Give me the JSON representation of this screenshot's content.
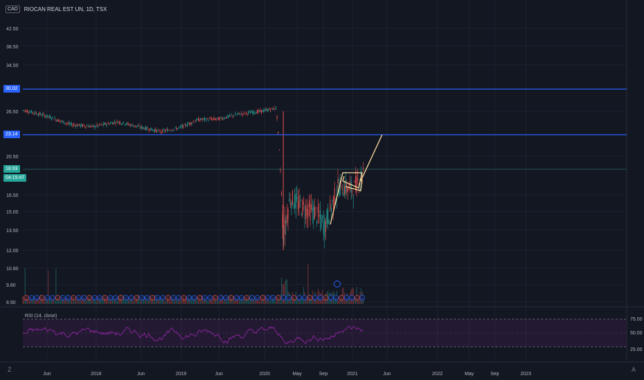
{
  "symbol": {
    "currency": "CAD",
    "title": "RIOCAN REAL EST UN, 1D, TSX"
  },
  "price_scale": [
    "42.50",
    "38.50",
    "34.50",
    "30.50",
    "26.50",
    "23.14",
    "20.50",
    "18.93",
    "16.50",
    "15.00",
    "13.50",
    "12.00",
    "10.80",
    "9.80",
    "8.90"
  ],
  "tags": {
    "level_high": {
      "value": "30.02",
      "color": "#2962ff"
    },
    "level_low": {
      "value": "23.14",
      "color": "#2962ff"
    },
    "last_price": {
      "value": "18.93",
      "color": "#26a69a"
    },
    "countdown": {
      "value": "04:15:47",
      "color": "#26a69a"
    }
  },
  "rsi": {
    "label": "RSI (14, close)",
    "levels": [
      "75.00",
      "50.00",
      "25.00"
    ],
    "color": "#9c27b0"
  },
  "time_axis": [
    "Jun",
    "2018",
    "Jun",
    "2019",
    "Jun",
    "2020",
    "May",
    "Sep",
    "2021",
    "Jun",
    "2022",
    "May",
    "Sep",
    "2023"
  ],
  "icons": {
    "bottom_left": "tradingview-z-icon",
    "bottom_right": "auto-scale-icon"
  },
  "chart_data": {
    "type": "line",
    "title": "RIOCAN REAL EST UN, 1D, TSX",
    "x": [
      "2017-03",
      "2017-06",
      "2017-09",
      "2017-12",
      "2018-03",
      "2018-06",
      "2018-09",
      "2018-12",
      "2019-03",
      "2019-06",
      "2019-09",
      "2019-12",
      "2020-02",
      "2020-03",
      "2020-04",
      "2020-06",
      "2020-08",
      "2020-10",
      "2020-11",
      "2021-01",
      "2021-02"
    ],
    "series": [
      {
        "values": [
          26.7,
          25.8,
          24.6,
          24.3,
          25.0,
          24.2,
          23.6,
          24.1,
          25.3,
          25.4,
          26.1,
          26.5,
          27.0,
          13.0,
          16.2,
          15.4,
          15.0,
          13.8,
          17.3,
          17.0,
          18.9
        ]
      }
    ],
    "horizontal_levels": [
      30.02,
      23.14,
      18.93
    ],
    "projection_line": {
      "from": [
        "2020-11",
        13.8
      ],
      "to": [
        "2021-05",
        23.14
      ]
    },
    "rsi_levels": [
      75,
      50,
      25
    ]
  }
}
